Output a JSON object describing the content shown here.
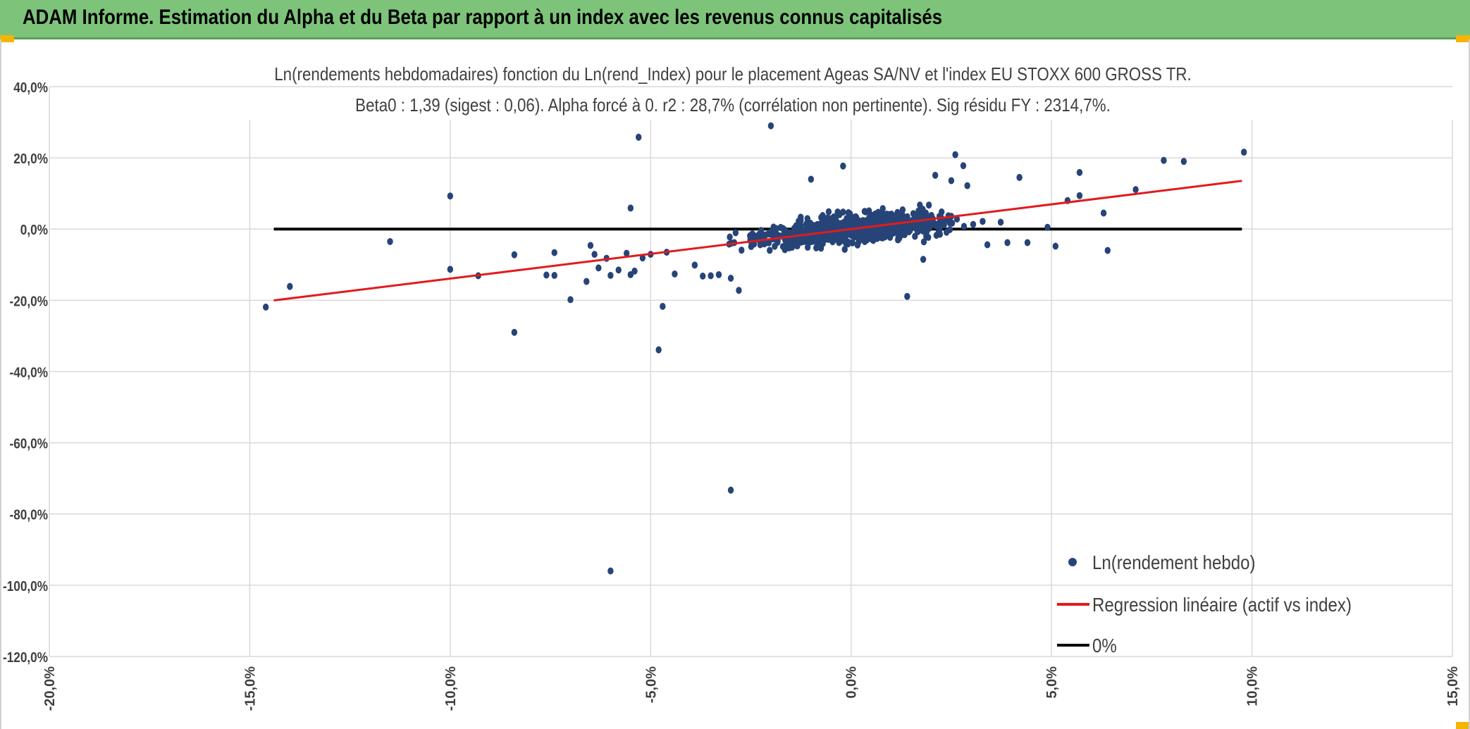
{
  "header": {
    "title": "ADAM Informe. Estimation du Alpha et du Beta par rapport à un index avec les revenus connus capitalisés"
  },
  "colors": {
    "header_bg": "#7dc47a",
    "points": "#264478",
    "regression": "#e31a1c",
    "zero_line": "#000000",
    "grid": "#d9d9d9"
  },
  "chart_data": {
    "type": "scatter",
    "title_line1": "Ln(rendements hebdomadaires) fonction du Ln(rend_Index) pour le placement Ageas SA/NV et l'index EU STOXX 600 GROSS TR.",
    "title_line2": "Beta0 : 1,39 (sigest : 0,06). Alpha forcé à 0. r2 : 28,7% (corrélation non pertinente). Sig résidu FY : 2314,7%.",
    "xlim": [
      -0.2,
      0.15
    ],
    "ylim": [
      -1.2,
      0.4
    ],
    "x_ticks": [
      -0.2,
      -0.15,
      -0.1,
      -0.05,
      0.0,
      0.05,
      0.1,
      0.15
    ],
    "x_tick_labels": [
      "-20,0%",
      "-15,0%",
      "-10,0%",
      "-5,0%",
      "0,0%",
      "5,0%",
      "10,0%",
      "15,0%"
    ],
    "y_ticks": [
      0.4,
      0.2,
      0.0,
      -0.2,
      -0.4,
      -0.6,
      -0.8,
      -1.0,
      -1.2
    ],
    "y_tick_labels": [
      "40,0%",
      "20,0%",
      "0,0%",
      "-20,0%",
      "-40,0%",
      "-60,0%",
      "-80,0%",
      "-100,0%",
      "-120,0%"
    ],
    "grid": true,
    "legend_position": "bottom-right",
    "beta": 1.39,
    "series": [
      {
        "name": "Ln(rendement hebdo)",
        "kind": "scatter",
        "color": "#264478",
        "outliers": [
          [
            -0.146,
            -0.219
          ],
          [
            -0.14,
            -0.161
          ],
          [
            -0.115,
            -0.035
          ],
          [
            -0.1,
            0.093
          ],
          [
            -0.1,
            -0.113
          ],
          [
            -0.093,
            -0.131
          ],
          [
            -0.084,
            -0.072
          ],
          [
            -0.084,
            -0.29
          ],
          [
            -0.076,
            -0.129
          ],
          [
            -0.074,
            -0.13
          ],
          [
            -0.074,
            -0.066
          ],
          [
            -0.07,
            -0.198
          ],
          [
            -0.066,
            -0.147
          ],
          [
            -0.065,
            -0.046
          ],
          [
            -0.064,
            -0.071
          ],
          [
            -0.063,
            -0.109
          ],
          [
            -0.061,
            -0.082
          ],
          [
            -0.06,
            -0.96
          ],
          [
            -0.06,
            -0.13
          ],
          [
            -0.058,
            -0.115
          ],
          [
            -0.056,
            -0.068
          ],
          [
            -0.055,
            0.059
          ],
          [
            -0.055,
            -0.128
          ],
          [
            -0.054,
            -0.118
          ],
          [
            -0.053,
            0.258
          ],
          [
            -0.052,
            -0.081
          ],
          [
            -0.05,
            -0.071
          ],
          [
            -0.048,
            -0.339
          ],
          [
            -0.047,
            -0.217
          ],
          [
            -0.046,
            -0.065
          ],
          [
            -0.044,
            -0.126
          ],
          [
            -0.039,
            -0.101
          ],
          [
            -0.037,
            -0.132
          ],
          [
            -0.035,
            -0.131
          ],
          [
            -0.033,
            -0.128
          ],
          [
            -0.03,
            -0.733
          ],
          [
            -0.03,
            -0.138
          ],
          [
            -0.028,
            -0.172
          ],
          [
            -0.02,
            0.29
          ],
          [
            -0.017,
            -0.049
          ],
          [
            -0.01,
            0.14
          ],
          [
            -0.002,
            0.177
          ],
          [
            0.014,
            -0.189
          ],
          [
            0.018,
            -0.085
          ],
          [
            0.021,
            0.151
          ],
          [
            0.025,
            0.136
          ],
          [
            0.026,
            0.209
          ],
          [
            0.028,
            0.178
          ],
          [
            0.029,
            0.122
          ],
          [
            0.034,
            -0.044
          ],
          [
            0.039,
            -0.038
          ],
          [
            0.042,
            0.145
          ],
          [
            0.044,
            -0.038
          ],
          [
            0.049,
            0.005
          ],
          [
            0.051,
            -0.048
          ],
          [
            0.054,
            0.08
          ],
          [
            0.057,
            0.094
          ],
          [
            0.057,
            0.159
          ],
          [
            0.063,
            0.045
          ],
          [
            0.064,
            -0.06
          ],
          [
            0.071,
            0.111
          ],
          [
            0.078,
            0.193
          ],
          [
            0.083,
            0.19
          ],
          [
            0.098,
            0.216
          ]
        ],
        "cluster": {
          "n": 900,
          "x_mean": 0.001,
          "x_sd": 0.016,
          "resid_sd": 0.026,
          "beta": 1.2
        }
      },
      {
        "name": "Regression linéaire (actif vs index)",
        "kind": "line",
        "color": "#e31a1c",
        "points": [
          [
            -0.144,
            -0.2002
          ],
          [
            0.0975,
            0.1355
          ]
        ]
      },
      {
        "name": "0%",
        "kind": "line",
        "color": "#000000",
        "points": [
          [
            -0.144,
            0.0
          ],
          [
            0.0975,
            0.0
          ]
        ]
      }
    ]
  }
}
